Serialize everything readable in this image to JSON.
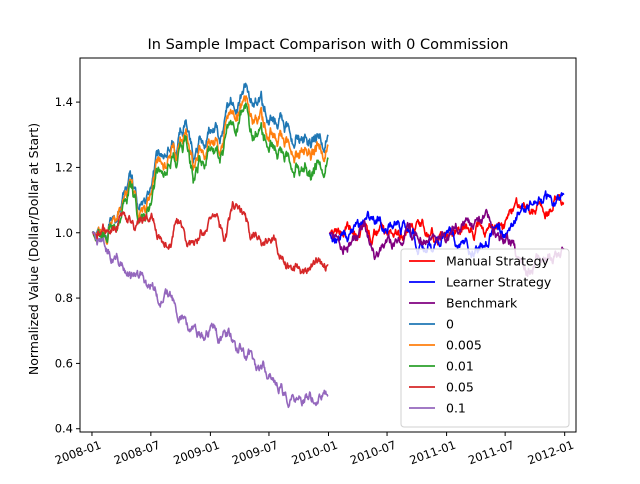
{
  "chart_data": {
    "type": "line",
    "title": "In Sample Impact Comparison with 0 Commission",
    "xlabel": "",
    "ylabel": "Normalized Value (Dollar/Dollar at Start)",
    "xlim": [
      "2007-11-25",
      "2012-02-05"
    ],
    "ylim": [
      0.39,
      1.535
    ],
    "xticks": [
      "2008-01",
      "2008-07",
      "2009-01",
      "2009-07",
      "2010-01",
      "2010-07",
      "2011-01",
      "2011-07",
      "2012-01"
    ],
    "yticks": [
      "0.4",
      "0.6",
      "0.8",
      "1.0",
      "1.2",
      "1.4"
    ],
    "legend_position": "lower-right",
    "series": [
      {
        "name": "Manual Strategy",
        "color": "#ff0000",
        "x": [
          "2010-01-04",
          "2010-04-15",
          "2010-05-01",
          "2010-07-01",
          "2010-10-01",
          "2011-01-01",
          "2011-04-01",
          "2011-07-01",
          "2011-08-01",
          "2011-09-15",
          "2011-10-15",
          "2011-11-15",
          "2011-12-15",
          "2011-12-30"
        ],
        "values": [
          1.0,
          1.0,
          1.0,
          0.99,
          1.0,
          0.99,
          1.02,
          1.0,
          1.06,
          1.08,
          1.1,
          1.07,
          1.12,
          1.09
        ]
      },
      {
        "name": "Learner Strategy",
        "color": "#0000ff",
        "x": [
          "2010-01-04",
          "2010-02-15",
          "2010-04-01",
          "2010-06-01",
          "2010-08-15",
          "2010-11-01",
          "2011-01-15",
          "2011-04-01",
          "2011-06-01",
          "2011-07-15",
          "2011-08-15",
          "2011-10-01",
          "2011-11-15",
          "2011-12-30"
        ],
        "values": [
          1.0,
          0.98,
          1.01,
          1.03,
          1.02,
          0.97,
          0.98,
          0.96,
          1.0,
          1.0,
          1.06,
          1.09,
          1.1,
          1.12
        ]
      },
      {
        "name": "Benchmark",
        "color": "#800080",
        "x": [
          "2010-01-04",
          "2010-02-15",
          "2010-04-15",
          "2010-05-25",
          "2010-07-01",
          "2010-09-01",
          "2010-11-01",
          "2011-01-01",
          "2011-02-15",
          "2011-04-15",
          "2011-07-15",
          "2011-08-10",
          "2011-09-15",
          "2011-11-01",
          "2011-12-30"
        ],
        "values": [
          1.0,
          0.97,
          1.02,
          0.93,
          0.96,
          1.0,
          0.98,
          1.0,
          1.04,
          1.02,
          0.98,
          0.93,
          0.9,
          0.94,
          0.95
        ]
      },
      {
        "name": "0",
        "color": "#1f77b4",
        "x": [
          "2008-01-02",
          "2008-02-01",
          "2008-03-01",
          "2008-04-15",
          "2008-06-01",
          "2008-07-01",
          "2008-08-01",
          "2008-09-15",
          "2008-10-15",
          "2008-11-15",
          "2008-12-01",
          "2009-01-01",
          "2009-02-01",
          "2009-03-15",
          "2009-04-15",
          "2009-05-15",
          "2009-06-15",
          "2009-07-15",
          "2009-08-15",
          "2009-09-15",
          "2009-10-15",
          "2009-11-15",
          "2009-12-31"
        ],
        "values": [
          1.0,
          1.0,
          1.05,
          1.16,
          1.1,
          1.15,
          1.22,
          1.28,
          1.33,
          1.23,
          1.28,
          1.33,
          1.3,
          1.42,
          1.46,
          1.4,
          1.38,
          1.36,
          1.35,
          1.32,
          1.3,
          1.29,
          1.3
        ]
      },
      {
        "name": "0.005",
        "color": "#ff7f0e",
        "x": [
          "2008-01-02",
          "2008-02-01",
          "2008-03-01",
          "2008-04-15",
          "2008-06-01",
          "2008-07-01",
          "2008-08-01",
          "2008-09-15",
          "2008-10-15",
          "2008-11-15",
          "2008-12-01",
          "2009-01-01",
          "2009-02-01",
          "2009-03-15",
          "2009-04-15",
          "2009-05-15",
          "2009-06-15",
          "2009-07-15",
          "2009-08-15",
          "2009-09-15",
          "2009-10-15",
          "2009-11-15",
          "2009-12-31"
        ],
        "values": [
          1.0,
          1.0,
          1.04,
          1.14,
          1.09,
          1.13,
          1.2,
          1.26,
          1.3,
          1.2,
          1.25,
          1.3,
          1.27,
          1.38,
          1.42,
          1.35,
          1.33,
          1.31,
          1.29,
          1.27,
          1.26,
          1.25,
          1.27
        ]
      },
      {
        "name": "0.01",
        "color": "#2ca02c",
        "x": [
          "2008-01-02",
          "2008-02-01",
          "2008-03-01",
          "2008-04-15",
          "2008-06-01",
          "2008-07-01",
          "2008-08-01",
          "2008-09-15",
          "2008-10-15",
          "2008-11-15",
          "2008-12-01",
          "2009-01-01",
          "2009-02-01",
          "2009-03-15",
          "2009-04-15",
          "2009-05-15",
          "2009-06-15",
          "2009-07-15",
          "2009-08-15",
          "2009-09-15",
          "2009-10-15",
          "2009-11-15",
          "2009-12-31"
        ],
        "values": [
          1.0,
          1.0,
          1.03,
          1.12,
          1.07,
          1.1,
          1.17,
          1.23,
          1.27,
          1.17,
          1.21,
          1.27,
          1.24,
          1.35,
          1.39,
          1.31,
          1.29,
          1.27,
          1.25,
          1.23,
          1.2,
          1.2,
          1.23
        ]
      },
      {
        "name": "0.05",
        "color": "#d62728",
        "x": [
          "2008-01-02",
          "2008-02-01",
          "2008-03-01",
          "2008-04-01",
          "2008-05-15",
          "2008-07-01",
          "2008-08-15",
          "2008-10-01",
          "2008-11-01",
          "2008-12-15",
          "2009-01-15",
          "2009-02-15",
          "2009-03-15",
          "2009-04-15",
          "2009-05-15",
          "2009-06-15",
          "2009-07-15",
          "2009-08-15",
          "2009-09-15",
          "2009-10-15",
          "2009-11-15",
          "2009-12-31"
        ],
        "values": [
          1.0,
          1.0,
          1.04,
          1.06,
          1.02,
          1.05,
          0.97,
          1.03,
          0.96,
          0.99,
          1.01,
          0.98,
          1.08,
          1.03,
          0.99,
          0.96,
          0.97,
          0.92,
          0.88,
          0.87,
          0.89,
          0.9
        ]
      },
      {
        "name": "0.1",
        "color": "#9467bd",
        "x": [
          "2008-01-02",
          "2008-02-01",
          "2008-03-01",
          "2008-04-01",
          "2008-05-01",
          "2008-06-01",
          "2008-07-01",
          "2008-08-01",
          "2008-09-01",
          "2008-10-01",
          "2008-11-01",
          "2008-12-01",
          "2009-01-01",
          "2009-02-01",
          "2009-03-01",
          "2009-04-01",
          "2009-05-01",
          "2009-06-01",
          "2009-07-01",
          "2009-08-01",
          "2009-09-01",
          "2009-10-01",
          "2009-11-01",
          "2009-12-31"
        ],
        "values": [
          1.0,
          0.97,
          0.94,
          0.92,
          0.88,
          0.86,
          0.84,
          0.81,
          0.79,
          0.75,
          0.71,
          0.69,
          0.7,
          0.67,
          0.69,
          0.64,
          0.61,
          0.58,
          0.56,
          0.53,
          0.5,
          0.47,
          0.49,
          0.5
        ]
      }
    ]
  }
}
